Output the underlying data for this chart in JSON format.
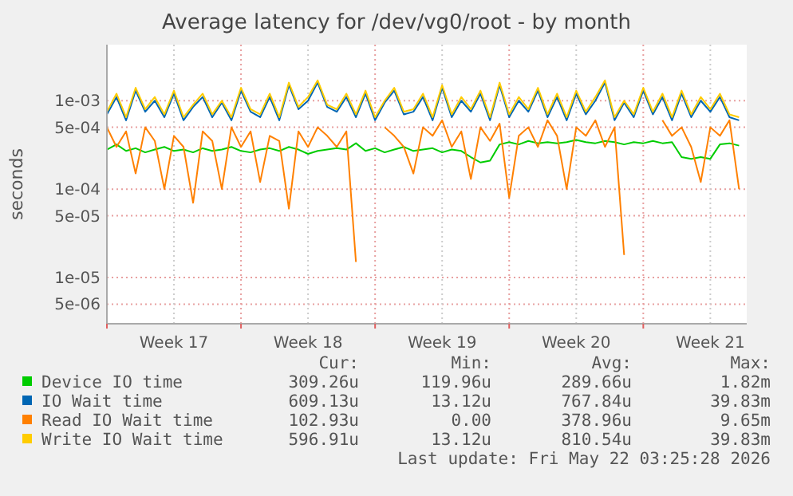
{
  "chart_data": {
    "type": "line",
    "title": "Average latency for /dev/vg0/root - by month",
    "ylabel": "seconds",
    "log": "y",
    "grid": true,
    "legend": "bottom",
    "marker": "none",
    "line_style": "solid",
    "xlim": [
      "2026-04-20T00:00",
      "2026-05-23T09:36"
    ],
    "xticks": [
      {
        "value": "2026-04-20T00:00",
        "label": null
      },
      {
        "value": "2026-04-23T12:00",
        "label": "Week 17"
      },
      {
        "value": "2026-04-27T00:00",
        "label": null
      },
      {
        "value": "2026-04-30T12:00",
        "label": "Week 18"
      },
      {
        "value": "2026-05-04T00:00",
        "label": null
      },
      {
        "value": "2026-05-07T12:00",
        "label": "Week 19"
      },
      {
        "value": "2026-05-11T00:00",
        "label": null
      },
      {
        "value": "2026-05-14T12:00",
        "label": "Week 20"
      },
      {
        "value": "2026-05-18T00:00",
        "label": null
      },
      {
        "value": "2026-05-21T12:00",
        "label": "Week 21"
      }
    ],
    "ylim": [
      3e-06,
      0.0043
    ],
    "yticks": [
      {
        "value": 5e-06,
        "label": "5e-06"
      },
      {
        "value": 1e-05,
        "label": "1e-05"
      },
      {
        "value": 5e-05,
        "label": "5e-05"
      },
      {
        "value": 0.0001,
        "label": "1e-04"
      },
      {
        "value": 0.0005,
        "label": "5e-04"
      },
      {
        "value": 0.001,
        "label": "1e-03"
      }
    ],
    "x": [
      "2026-04-20T00:00",
      "2026-04-20T12:00",
      "2026-04-21T00:00",
      "2026-04-21T12:00",
      "2026-04-22T00:00",
      "2026-04-22T12:00",
      "2026-04-23T00:00",
      "2026-04-23T12:00",
      "2026-04-24T00:00",
      "2026-04-24T12:00",
      "2026-04-25T00:00",
      "2026-04-25T12:00",
      "2026-04-26T00:00",
      "2026-04-26T12:00",
      "2026-04-27T00:00",
      "2026-04-27T12:00",
      "2026-04-28T00:00",
      "2026-04-28T12:00",
      "2026-04-29T00:00",
      "2026-04-29T12:00",
      "2026-04-30T00:00",
      "2026-04-30T12:00",
      "2026-05-01T00:00",
      "2026-05-01T12:00",
      "2026-05-02T00:00",
      "2026-05-02T12:00",
      "2026-05-03T00:00",
      "2026-05-03T12:00",
      "2026-05-04T00:00",
      "2026-05-04T12:00",
      "2026-05-05T00:00",
      "2026-05-05T12:00",
      "2026-05-06T00:00",
      "2026-05-06T12:00",
      "2026-05-07T00:00",
      "2026-05-07T12:00",
      "2026-05-08T00:00",
      "2026-05-08T12:00",
      "2026-05-09T00:00",
      "2026-05-09T12:00",
      "2026-05-10T00:00",
      "2026-05-10T12:00",
      "2026-05-11T00:00",
      "2026-05-11T12:00",
      "2026-05-12T00:00",
      "2026-05-12T12:00",
      "2026-05-13T00:00",
      "2026-05-13T12:00",
      "2026-05-14T00:00",
      "2026-05-14T12:00",
      "2026-05-15T00:00",
      "2026-05-15T12:00",
      "2026-05-16T00:00",
      "2026-05-16T12:00",
      "2026-05-17T00:00",
      "2026-05-17T12:00",
      "2026-05-18T00:00",
      "2026-05-18T12:00",
      "2026-05-19T00:00",
      "2026-05-19T12:00",
      "2026-05-20T00:00",
      "2026-05-20T12:00",
      "2026-05-21T00:00",
      "2026-05-21T12:00",
      "2026-05-22T00:00",
      "2026-05-22T12:00",
      "2026-05-23T00:00"
    ],
    "series": [
      {
        "name": "Device IO time",
        "color": "#00cc00",
        "values": [
          0.00028,
          0.00032,
          0.00027,
          0.00029,
          0.00026,
          0.00028,
          0.0003,
          0.00027,
          0.00028,
          0.00026,
          0.00029,
          0.00027,
          0.00028,
          0.0003,
          0.00027,
          0.00026,
          0.00028,
          0.00029,
          0.00027,
          0.0003,
          0.00028,
          0.00025,
          0.00027,
          0.00028,
          0.00029,
          0.00028,
          0.00033,
          0.00027,
          0.00029,
          0.00026,
          0.00028,
          0.0003,
          0.00027,
          0.00028,
          0.00029,
          0.00026,
          0.00028,
          0.00027,
          0.00023,
          0.0002,
          0.00021,
          0.00032,
          0.00034,
          0.00032,
          0.00035,
          0.00033,
          0.00034,
          0.00033,
          0.00034,
          0.00036,
          0.00034,
          0.00033,
          0.00035,
          0.00034,
          0.00032,
          0.00034,
          0.00033,
          0.00035,
          0.00033,
          0.00034,
          0.00023,
          0.00022,
          0.00023,
          0.00022,
          0.00032,
          0.00033,
          0.00031
        ]
      },
      {
        "name": "IO Wait time",
        "color": "#0066b3",
        "values": [
          0.0007,
          0.0011,
          0.0006,
          0.0013,
          0.00075,
          0.001,
          0.00065,
          0.0012,
          0.0006,
          0.00085,
          0.0011,
          0.00065,
          0.00095,
          0.0006,
          0.0013,
          0.00075,
          0.00065,
          0.0011,
          0.0006,
          0.0015,
          0.0008,
          0.001,
          0.0016,
          0.00085,
          0.00075,
          0.0011,
          0.00065,
          0.0012,
          0.0006,
          0.00095,
          0.0013,
          0.0007,
          0.00075,
          0.0011,
          0.0006,
          0.0014,
          0.00065,
          0.001,
          0.00075,
          0.0012,
          0.0006,
          0.0015,
          0.00065,
          0.001,
          0.00075,
          0.0013,
          0.00065,
          0.0011,
          0.0006,
          0.0012,
          0.0007,
          0.001,
          0.0016,
          0.0006,
          0.00095,
          0.00065,
          0.0013,
          0.0007,
          0.0011,
          0.0006,
          0.0012,
          0.00065,
          0.001,
          0.00075,
          0.0011,
          0.00065,
          0.0006
        ]
      },
      {
        "name": "Read IO Wait time",
        "color": "#ff8000",
        "values": [
          0.0005,
          0.0003,
          0.00045,
          0.00015,
          0.0005,
          0.00035,
          0.0001,
          0.0004,
          0.0003,
          7e-05,
          0.00045,
          0.00035,
          0.0001,
          0.0005,
          0.0003,
          0.00045,
          0.00012,
          0.0004,
          0.00035,
          6e-05,
          0.00045,
          0.0003,
          0.0005,
          0.0004,
          0.0003,
          0.00045,
          1.5e-05,
          null,
          null,
          0.0005,
          0.0004,
          0.0003,
          0.00015,
          0.0005,
          0.0004,
          0.0006,
          0.0003,
          0.00045,
          0.00013,
          0.0005,
          0.00035,
          0.00055,
          8e-05,
          0.0004,
          0.0005,
          0.0003,
          0.0006,
          0.0004,
          0.0001,
          0.0005,
          0.0004,
          0.0006,
          0.0003,
          0.0005,
          1.8e-05,
          null,
          null,
          null,
          0.0006,
          0.0004,
          0.0005,
          0.0003,
          0.00012,
          0.0005,
          0.0004,
          0.0006,
          0.0001
        ]
      },
      {
        "name": "Write IO Wait time",
        "color": "#ffcc00",
        "values": [
          0.00075,
          0.0012,
          0.00065,
          0.0014,
          0.0008,
          0.0011,
          0.0007,
          0.0013,
          0.00065,
          0.0009,
          0.0012,
          0.0007,
          0.001,
          0.00065,
          0.0014,
          0.0008,
          0.0007,
          0.0012,
          0.00065,
          0.0016,
          0.00085,
          0.0011,
          0.0017,
          0.0009,
          0.0008,
          0.0012,
          0.0007,
          0.0013,
          0.00065,
          0.001,
          0.0014,
          0.00075,
          0.0008,
          0.0012,
          0.00065,
          0.0015,
          0.0007,
          0.0011,
          0.0008,
          0.0013,
          0.00065,
          0.0016,
          0.0007,
          0.0011,
          0.0008,
          0.0014,
          0.0007,
          0.0012,
          0.00065,
          0.0013,
          0.00075,
          0.0011,
          0.0017,
          0.00065,
          0.001,
          0.0007,
          0.0014,
          0.00075,
          0.0012,
          0.00065,
          0.0013,
          0.0007,
          0.0011,
          0.0008,
          0.0012,
          0.0007,
          0.00065
        ]
      }
    ],
    "annotations": [
      "Cur:",
      "Min:",
      "Avg:",
      "Max:",
      "309.26u",
      "119.96u",
      "289.66u",
      "1.82m",
      "609.13u",
      "13.12u",
      "767.84u",
      "39.83m",
      "102.93u",
      "0.00",
      "378.96u",
      "9.65m",
      "596.91u",
      "13.12u",
      "810.54u",
      "39.83m",
      "Last update: Fri May 22 03:25:28 2026"
    ]
  }
}
